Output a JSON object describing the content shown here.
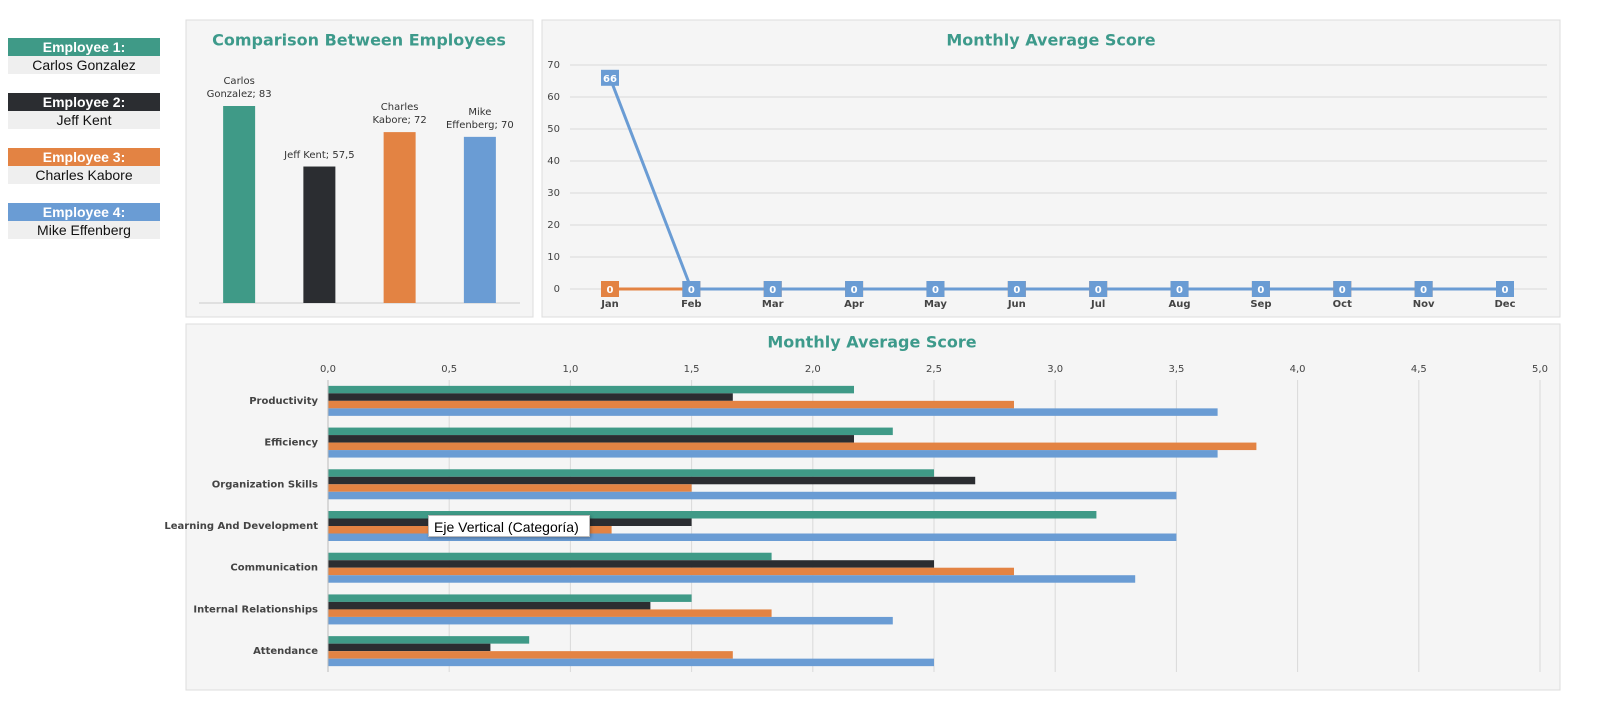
{
  "employees": [
    {
      "label": "Employee 1:",
      "name": "Carlos Gonzalez",
      "color": "#3f9a87"
    },
    {
      "label": "Employee 2:",
      "name": "Jeff Kent",
      "color": "#2b2d31"
    },
    {
      "label": "Employee 3:",
      "name": "Charles Kabore",
      "color": "#e38343"
    },
    {
      "label": "Employee 4:",
      "name": "Mike Effenberg",
      "color": "#6a9cd4"
    }
  ],
  "tooltip": "Eje Vertical (Categoría)",
  "chart_data": [
    {
      "type": "bar",
      "title": "Comparison Between Employees",
      "categories": [
        "Carlos Gonzalez",
        "Jeff Kent",
        "Charles Kabore",
        "Mike Effenberg"
      ],
      "values": [
        83,
        57.5,
        72,
        70
      ],
      "value_labels": [
        "Carlos Gonzalez; 83",
        "Jeff Kent; 57,5",
        "Charles Kabore; 72",
        "Mike Effenberg; 70"
      ],
      "colors": [
        "#3f9a87",
        "#2b2d31",
        "#e38343",
        "#6a9cd4"
      ]
    },
    {
      "type": "line",
      "title": "Monthly Average Score",
      "categories": [
        "Jan",
        "Feb",
        "Mar",
        "Apr",
        "May",
        "Jun",
        "Jul",
        "Aug",
        "Sep",
        "Oct",
        "Nov",
        "Dec"
      ],
      "series": [
        {
          "color": "#e38343",
          "values": [
            0,
            0,
            0,
            0,
            0,
            0,
            0,
            0,
            0,
            0,
            0,
            0
          ]
        },
        {
          "color": "#6a9cd4",
          "values": [
            66,
            0,
            0,
            0,
            0,
            0,
            0,
            0,
            0,
            0,
            0,
            0
          ]
        }
      ],
      "ylim": [
        0,
        70
      ],
      "yticks": [
        0,
        10,
        20,
        30,
        40,
        50,
        60,
        70
      ],
      "grid": true
    },
    {
      "type": "hbar",
      "title": "Monthly Average Score",
      "categories": [
        "Productivity",
        "Efficiency",
        "Organization Skills",
        "Learning And Development",
        "Communication",
        "Internal Relationships",
        "Attendance"
      ],
      "series": [
        {
          "color": "#3f9a87",
          "values": [
            2.17,
            2.33,
            2.5,
            3.17,
            1.83,
            1.5,
            0.83
          ]
        },
        {
          "color": "#2b2d31",
          "values": [
            1.67,
            2.17,
            2.67,
            1.5,
            2.5,
            1.33,
            0.67
          ]
        },
        {
          "color": "#e38343",
          "values": [
            2.83,
            3.83,
            1.5,
            1.17,
            2.83,
            1.83,
            1.67
          ]
        },
        {
          "color": "#6a9cd4",
          "values": [
            3.67,
            3.67,
            3.5,
            3.5,
            3.33,
            2.33,
            2.5
          ]
        }
      ],
      "xlim": [
        0,
        5
      ],
      "xticks": [
        {
          "value": 0,
          "label": "0,0"
        },
        {
          "value": 0.5,
          "label": "0,5"
        },
        {
          "value": 1,
          "label": "1,0"
        },
        {
          "value": 1.5,
          "label": "1,5"
        },
        {
          "value": 2,
          "label": "2,0"
        },
        {
          "value": 2.5,
          "label": "2,5"
        },
        {
          "value": 3,
          "label": "3,0"
        },
        {
          "value": 3.5,
          "label": "3,5"
        },
        {
          "value": 4,
          "label": "4,0"
        },
        {
          "value": 4.5,
          "label": "4,5"
        },
        {
          "value": 5,
          "label": "5,0"
        }
      ],
      "grid": true
    }
  ]
}
